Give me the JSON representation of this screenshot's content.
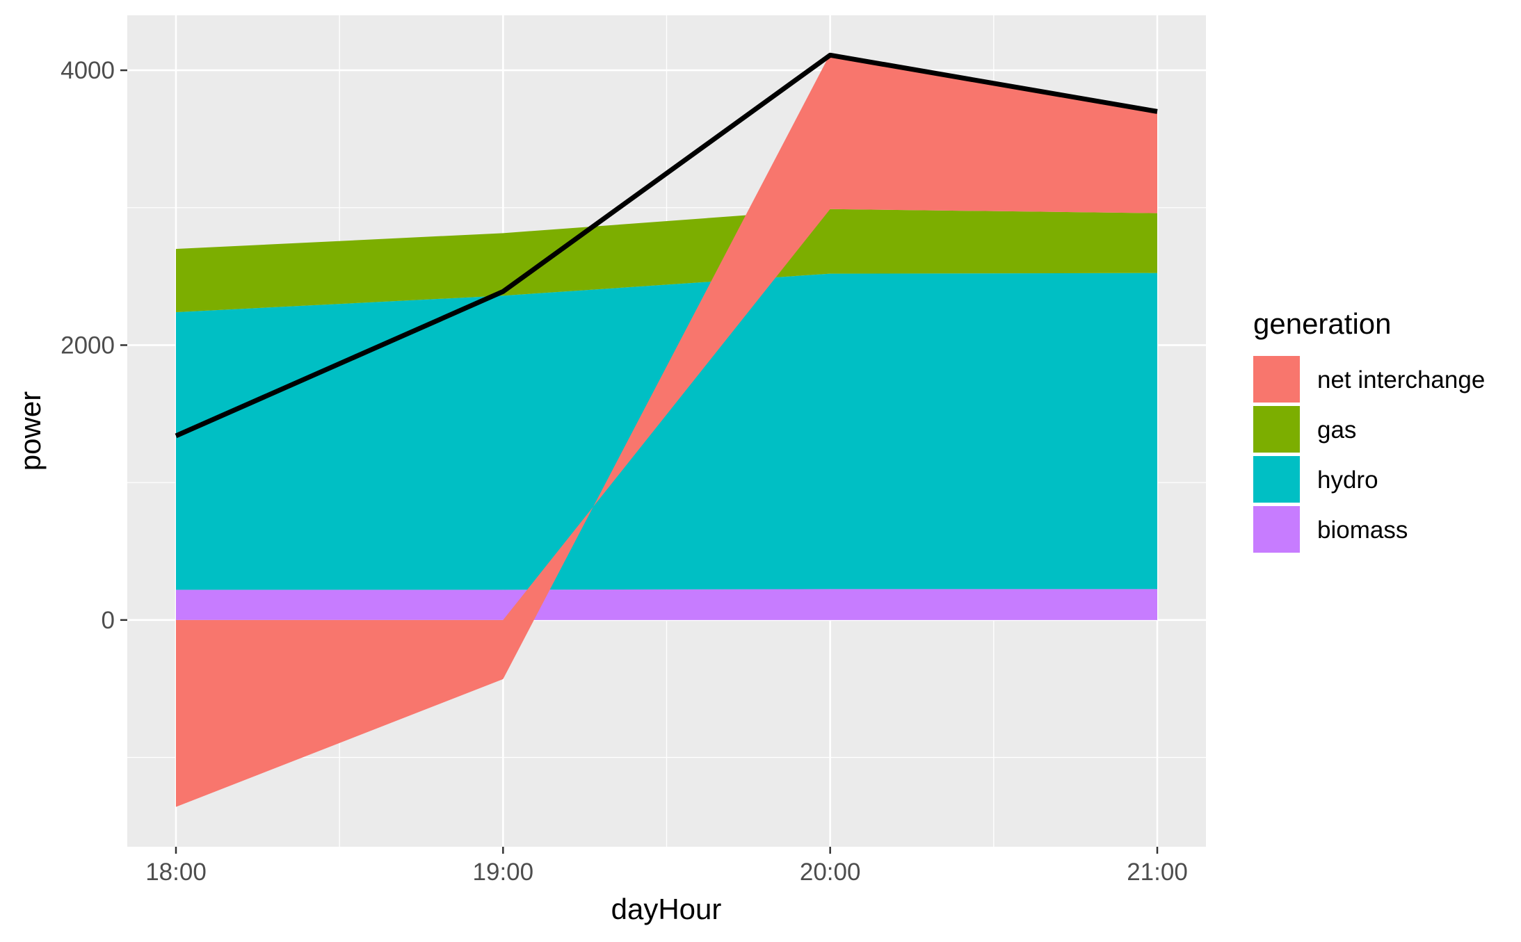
{
  "chart_data": {
    "type": "area",
    "stacked": true,
    "xlabel": "dayHour",
    "ylabel": "power",
    "x": [
      "18:00",
      "19:00",
      "20:00",
      "21:00"
    ],
    "y_ticks": [
      0,
      2000,
      4000
    ],
    "y_tick_labels": [
      "0",
      "2000",
      "4000"
    ],
    "ylim": [
      -1650,
      4400
    ],
    "grid": true,
    "legend": {
      "title": "generation",
      "position": "right",
      "entries": [
        "net interchange",
        "gas",
        "hydro",
        "biomass"
      ]
    },
    "series": [
      {
        "name": "biomass",
        "color": "#C77CFF",
        "values": [
          220,
          220,
          225,
          225
        ]
      },
      {
        "name": "hydro",
        "color": "#00BFC4",
        "values": [
          2020,
          2140,
          2295,
          2300
        ]
      },
      {
        "name": "gas",
        "color": "#7CAE00",
        "values": [
          460,
          455,
          470,
          435
        ]
      },
      {
        "name": "net interchange",
        "color": "#F8766D",
        "values": [
          -1360,
          -430,
          1130,
          740
        ]
      }
    ],
    "line": {
      "color": "#000000",
      "values": [
        1340,
        2390,
        4110,
        3700
      ]
    }
  }
}
